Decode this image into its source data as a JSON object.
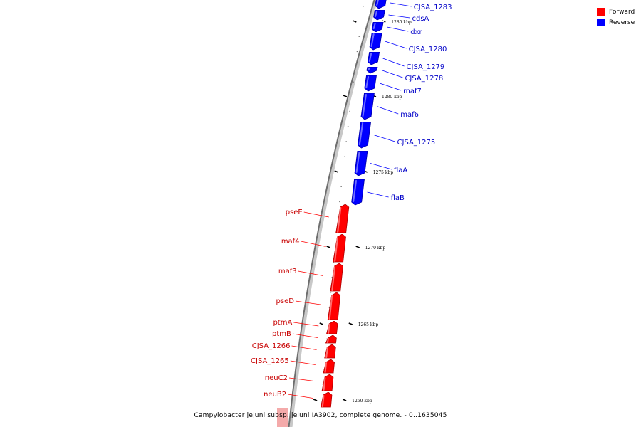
{
  "legend": {
    "forward_label": "Forward",
    "reverse_label": "Reverse",
    "forward_color": "#ff0000",
    "reverse_color": "#0000ff"
  },
  "caption": "Campylobacter jejuni subsp. jejuni IA3902, complete genome. - 0..1635045",
  "ticks": [
    {
      "label": "1285 kbp",
      "kbp": 1285
    },
    {
      "label": "1280 kbp",
      "kbp": 1280
    },
    {
      "label": "1275 kbp",
      "kbp": 1275
    },
    {
      "label": "1270 kbp",
      "kbp": 1270
    },
    {
      "label": "1265 kbp",
      "kbp": 1265
    },
    {
      "label": "1260 kbp",
      "kbp": 1260
    }
  ],
  "genes": [
    {
      "name": "CJSA_1283",
      "strand": "reverse"
    },
    {
      "name": "cdsA",
      "strand": "reverse"
    },
    {
      "name": "dxr",
      "strand": "reverse"
    },
    {
      "name": "CJSA_1280",
      "strand": "reverse"
    },
    {
      "name": "CJSA_1279",
      "strand": "reverse"
    },
    {
      "name": "CJSA_1278",
      "strand": "reverse"
    },
    {
      "name": "maf7",
      "strand": "reverse"
    },
    {
      "name": "maf6",
      "strand": "reverse"
    },
    {
      "name": "CJSA_1275",
      "strand": "reverse"
    },
    {
      "name": "flaA",
      "strand": "reverse"
    },
    {
      "name": "flaB",
      "strand": "reverse"
    },
    {
      "name": "pseE",
      "strand": "forward"
    },
    {
      "name": "maf4",
      "strand": "forward"
    },
    {
      "name": "maf3",
      "strand": "forward"
    },
    {
      "name": "pseD",
      "strand": "forward"
    },
    {
      "name": "ptmA",
      "strand": "forward"
    },
    {
      "name": "ptmB",
      "strand": "forward"
    },
    {
      "name": "CJSA_1266",
      "strand": "forward"
    },
    {
      "name": "CJSA_1265",
      "strand": "forward"
    },
    {
      "name": "neuC2",
      "strand": "forward"
    },
    {
      "name": "neuB2",
      "strand": "forward"
    }
  ]
}
